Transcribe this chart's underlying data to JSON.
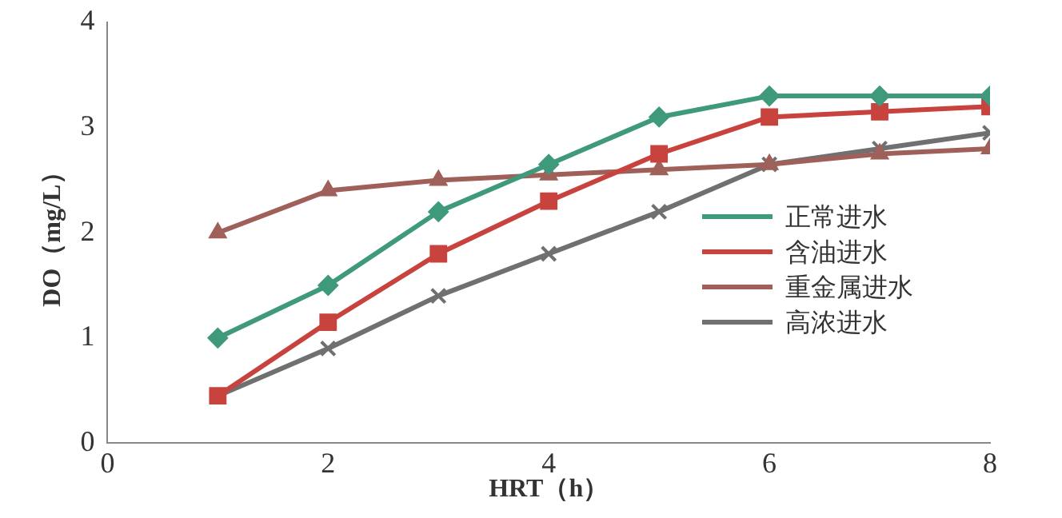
{
  "chart_data": {
    "type": "line",
    "xlabel": "HRT（h）",
    "ylabel": "DO（mg/L）",
    "x": [
      1,
      2,
      3,
      4,
      5,
      6,
      7,
      8
    ],
    "xlim": [
      0,
      8
    ],
    "xticks": [
      0,
      2,
      4,
      6,
      8
    ],
    "ylim": [
      0,
      4
    ],
    "yticks": [
      0,
      1,
      2,
      3,
      4
    ],
    "grid": false,
    "legend": "right",
    "series": [
      {
        "name": "正常进水",
        "color": "#3f9a7c",
        "marker": "diamond",
        "values": [
          1.0,
          1.5,
          2.2,
          2.65,
          3.1,
          3.3,
          3.3,
          3.3
        ]
      },
      {
        "name": "含油进水",
        "color": "#c8423e",
        "marker": "square",
        "values": [
          0.45,
          1.15,
          1.8,
          2.3,
          2.75,
          3.1,
          3.15,
          3.2
        ]
      },
      {
        "name": "重金属进水",
        "color": "#a0605a",
        "marker": "triangle",
        "values": [
          2.0,
          2.4,
          2.5,
          2.55,
          2.6,
          2.65,
          2.75,
          2.8
        ]
      },
      {
        "name": "高浓进水",
        "color": "#707070",
        "marker": "cross",
        "values": [
          0.45,
          0.9,
          1.4,
          1.8,
          2.2,
          2.65,
          2.8,
          2.95
        ]
      }
    ]
  }
}
